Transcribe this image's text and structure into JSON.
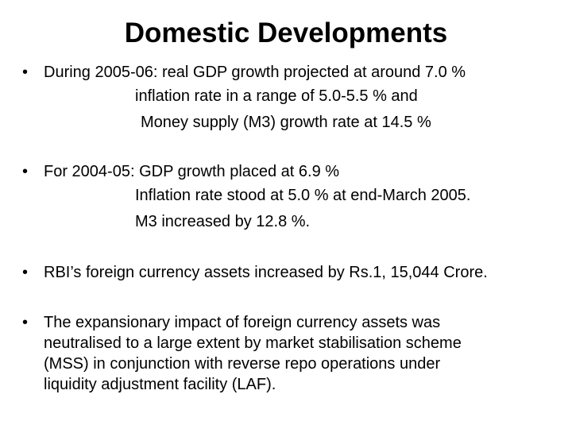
{
  "title": "Domestic Developments",
  "bullet_glyph": "•",
  "bullets": [
    {
      "lines": [
        "During 2005-06: real GDP growth projected at around 7.0 %",
        "inflation rate in a range of 5.0-5.5 % and",
        "Money supply (M3) growth rate at 14.5 %"
      ]
    },
    {
      "lines": [
        "For 2004-05: GDP growth placed at 6.9 %",
        "Inflation rate stood at 5.0 % at end-March 2005.",
        "M3 increased by 12.8 %."
      ]
    },
    {
      "lines": [
        "RBI’s foreign currency assets increased by Rs.1, 15,044 Crore."
      ]
    },
    {
      "lines": [
        "The expansionary impact of foreign currency assets was",
        "neutralised to a large extent by market stabilisation scheme",
        "(MSS) in conjunction with reverse repo operations under",
        "liquidity adjustment facility (LAF)."
      ]
    }
  ]
}
